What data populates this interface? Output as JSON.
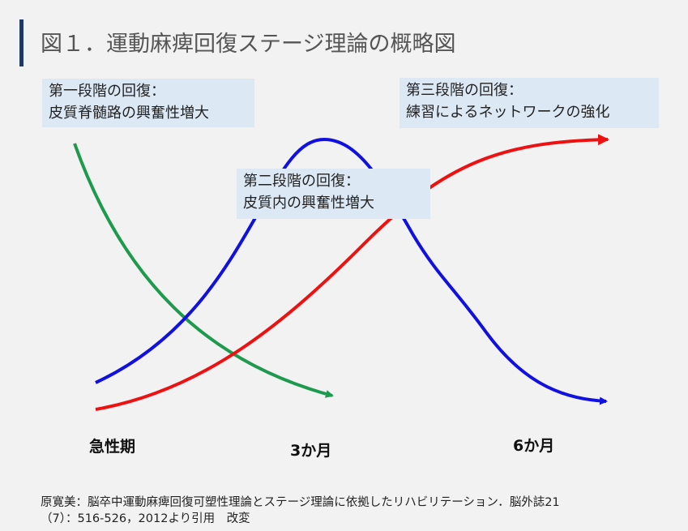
{
  "title": "図１．運動麻痺回復ステージ理論の概略図",
  "stages": [
    {
      "lines": [
        "第一段階の回復：",
        "皮質脊髄路の興奮性増大"
      ]
    },
    {
      "lines": [
        "第二段階の回復：",
        "皮質内の興奮性増大"
      ]
    },
    {
      "lines": [
        "第三段階の回復：",
        "練習によるネットワークの強化"
      ]
    }
  ],
  "timeline": [
    "急性期",
    "3か月",
    "6か月"
  ],
  "citation": [
    "原寛美：脳卒中運動麻痺回復可塑性理論とステージ理論に依拠したリハビリテーション．脳外誌21",
    "（7）：516-526，2012より引用　改変"
  ]
}
